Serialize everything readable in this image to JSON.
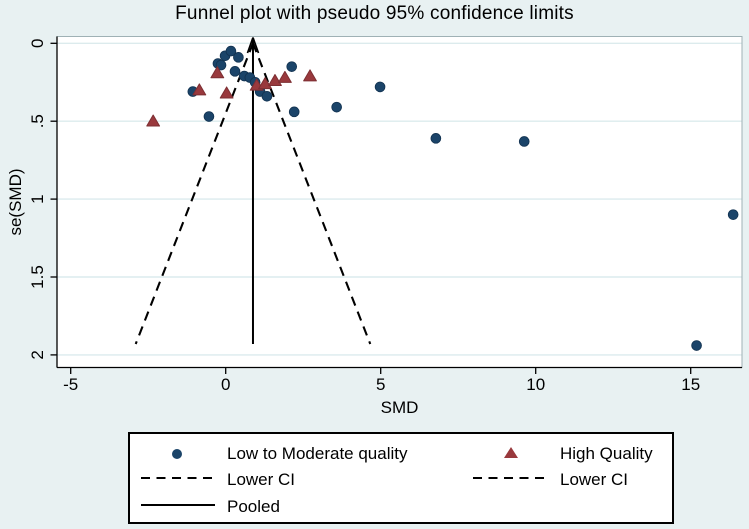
{
  "chart_data": {
    "type": "scatter",
    "title": "Funnel plot with pseudo 95% confidence limits",
    "xlabel": "SMD",
    "ylabel": "se(SMD)",
    "x_ticks": [
      -5,
      0,
      5,
      10,
      15
    ],
    "x_tick_labels": [
      "-5",
      "0",
      "5",
      "10",
      "15"
    ],
    "y_ticks": [
      0,
      0.5,
      1,
      1.5,
      2
    ],
    "y_tick_labels": [
      "0",
      ".5",
      "1",
      "1.5",
      "2"
    ],
    "xlim": [
      -5.44,
      16.65
    ],
    "ylim": [
      0,
      2.08
    ],
    "y_axis_inverted": true,
    "grid": "horizontal",
    "legend_position": "bottom",
    "pooled_smd": 0.88,
    "pseudo_ci": {
      "z": 1.96,
      "max_se": 1.93
    },
    "series": [
      {
        "name": "Low to Moderate quality",
        "marker": "circle",
        "color": "#1b4469",
        "points": [
          [
            -0.02,
            0.08
          ],
          [
            0.17,
            0.05
          ],
          [
            0.41,
            0.09
          ],
          [
            -0.25,
            0.13
          ],
          [
            -0.15,
            0.14
          ],
          [
            0.3,
            0.18
          ],
          [
            0.6,
            0.21
          ],
          [
            0.78,
            0.22
          ],
          [
            0.95,
            0.25
          ],
          [
            1.11,
            0.31
          ],
          [
            1.33,
            0.34
          ],
          [
            -1.06,
            0.31
          ],
          [
            -0.54,
            0.47
          ],
          [
            2.13,
            0.15
          ],
          [
            2.21,
            0.44
          ],
          [
            3.58,
            0.41
          ],
          [
            4.98,
            0.28
          ],
          [
            6.78,
            0.61
          ],
          [
            9.63,
            0.63
          ],
          [
            16.37,
            1.1
          ],
          [
            15.19,
            1.94
          ]
        ]
      },
      {
        "name": "High Quality",
        "marker": "triangle",
        "color": "#99393d",
        "points": [
          [
            -0.27,
            0.19
          ],
          [
            -0.85,
            0.3
          ],
          [
            0.03,
            0.32
          ],
          [
            -2.34,
            0.5
          ],
          [
            1.0,
            0.27
          ],
          [
            1.27,
            0.26
          ],
          [
            1.59,
            0.24
          ],
          [
            1.91,
            0.22
          ],
          [
            2.72,
            0.21
          ]
        ]
      }
    ],
    "colors": {
      "background": "#e8f1f2",
      "plot_background": "#ffffff",
      "grid": "#dcebed",
      "axis": "#000000",
      "plot_border": "#9fb1b5",
      "line": "#000000"
    }
  },
  "legend": {
    "items": [
      {
        "swatch": "circle",
        "label": "Low to Moderate quality"
      },
      {
        "swatch": "triangle",
        "label": "High Quality"
      },
      {
        "swatch": "dashed",
        "label": "Lower CI"
      },
      {
        "swatch": "dashed",
        "label": "Lower CI"
      },
      {
        "swatch": "solid",
        "label": "Pooled"
      }
    ]
  }
}
